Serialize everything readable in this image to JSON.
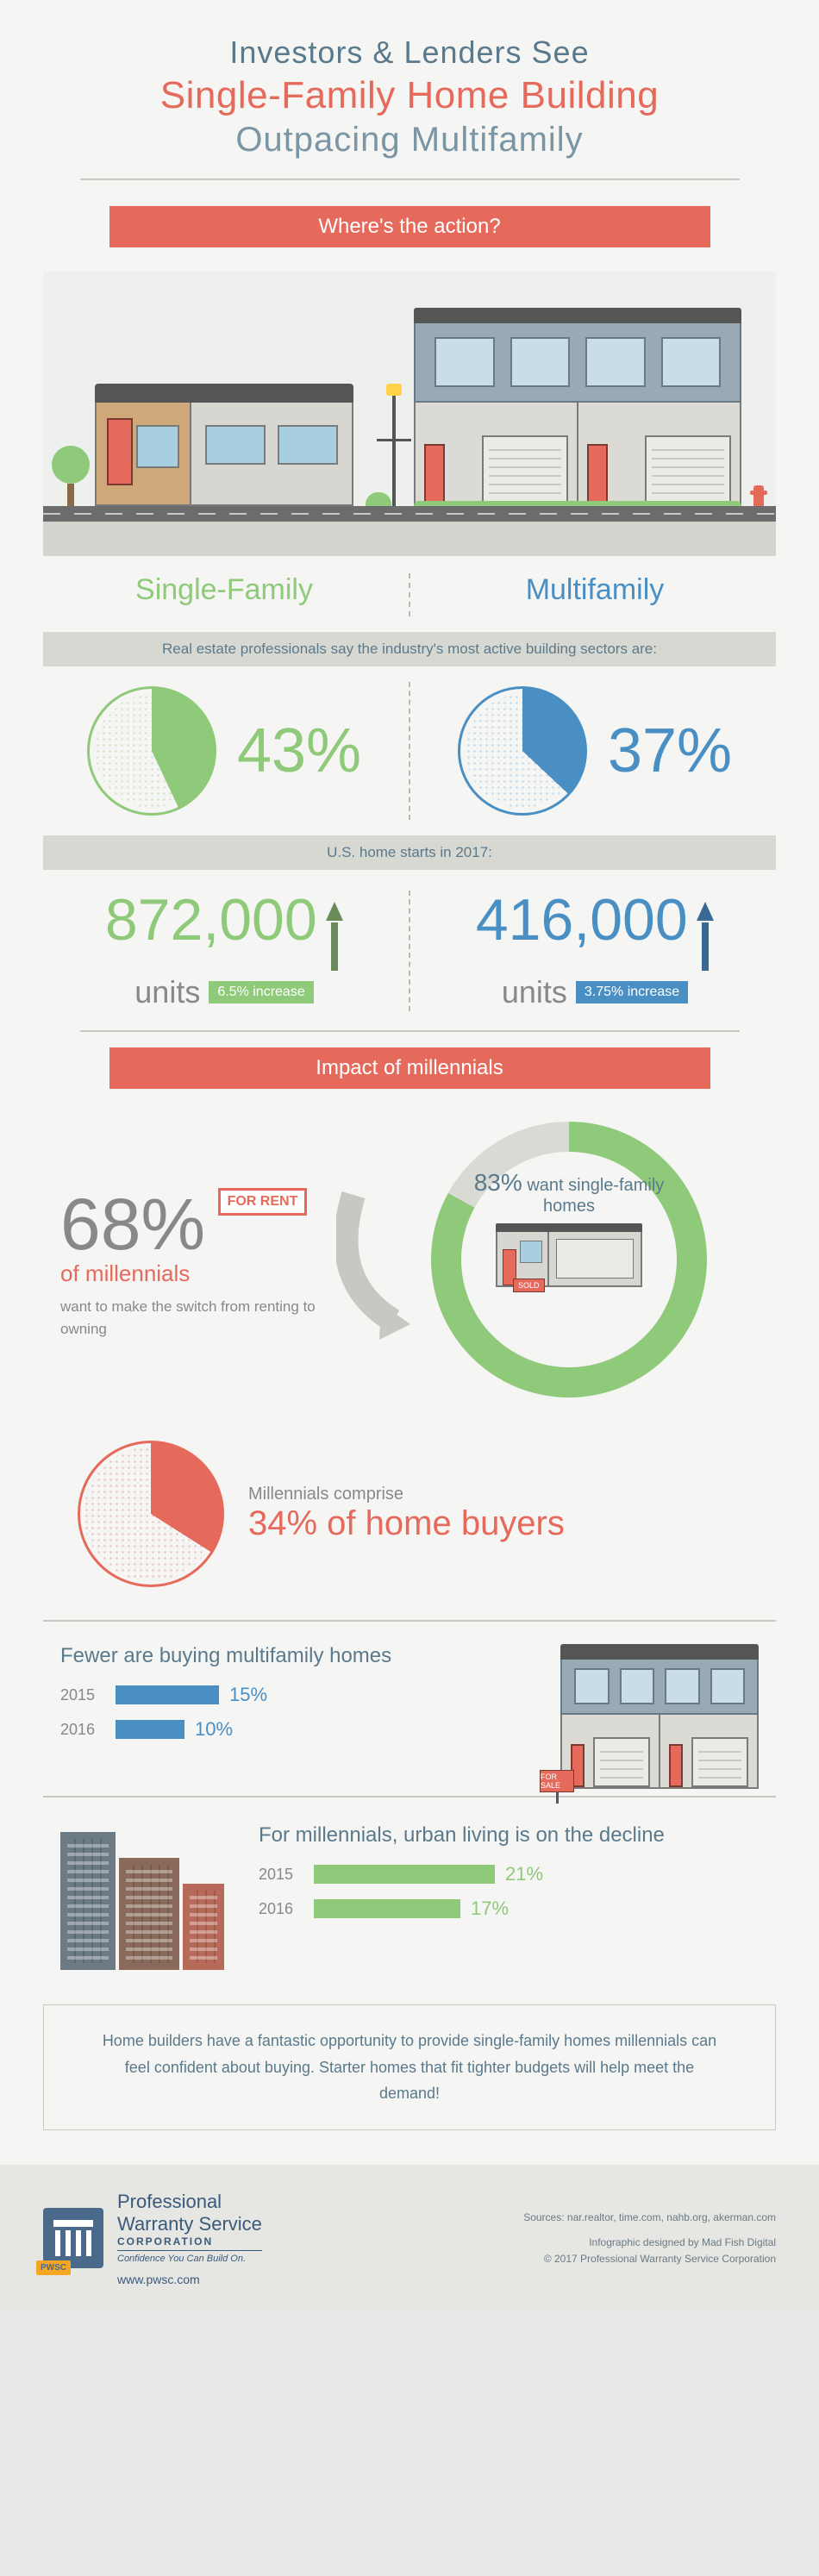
{
  "title": {
    "line1": "Investors & Lenders See",
    "line2": "Single-Family Home Building",
    "line3": "Outpacing Multifamily"
  },
  "section1": {
    "banner": "Where's the action?",
    "single_label": "Single-Family",
    "multi_label": "Multifamily",
    "subhead_active": "Real estate professionals say the industry's most active building sectors are:",
    "single_pct": 43,
    "single_pct_text": "43%",
    "multi_pct": 37,
    "multi_pct_text": "37%",
    "colors": {
      "single": "#8fc97a",
      "multi": "#4a8fc4",
      "dot_sf": "#cde4c0",
      "dot_mf": "#bcd7ec"
    },
    "subhead_starts": "U.S. home starts in 2017:",
    "single_units": "872,000",
    "single_increase": "6.5% increase",
    "multi_units": "416,000",
    "multi_increase": "3.75% increase",
    "units_word": "units"
  },
  "section2": {
    "banner": "Impact of millennials",
    "rent_pct": "68%",
    "of_mill": "of millennials",
    "rent_sub": "want to make the switch from renting to owning",
    "for_rent": "FOR RENT",
    "want_sf_pct": 83,
    "want_sf_text_pct": "83%",
    "want_sf_text_rest": " want single-family homes",
    "sold": "SOLD",
    "buyers_lead": "Millennials comprise",
    "buyers_pct": 34,
    "buyers_big": "34% of home buyers",
    "fewer_title": "Fewer are buying multifamily homes",
    "fewer_bars": [
      {
        "year": "2015",
        "pct": 15,
        "label": "15%"
      },
      {
        "year": "2016",
        "pct": 10,
        "label": "10%"
      }
    ],
    "for_sale": "FOR SALE",
    "urban_title": "For millennials, urban living is on the decline",
    "urban_bars": [
      {
        "year": "2015",
        "pct": 21,
        "label": "21%"
      },
      {
        "year": "2016",
        "pct": 17,
        "label": "17%"
      }
    ],
    "bar_scale_blue": 8,
    "bar_scale_green": 10
  },
  "closing": "Home builders have a fantastic opportunity to provide single-family homes millennials can feel confident about buying. Starter homes that fit tighter budgets will help meet the demand!",
  "footer": {
    "badge": "PWSC",
    "brand1": "Professional",
    "brand2": "Warranty Service",
    "brand3": "CORPORATION",
    "tagline": "Confidence You Can Build On.",
    "url": "www.pwsc.com",
    "sources_label": "Sources:",
    "sources": "nar.realtor, time.com, nahb.org, akerman.com",
    "designed": "Infographic designed by Mad Fish Digital",
    "copyright": "© 2017 Professional Warranty Service Corporation"
  },
  "palette": {
    "coral": "#e66a5c",
    "green": "#8fc97a",
    "blue": "#4a8fc4",
    "slate": "#5a7a8c",
    "gray": "#888888",
    "bg": "#f5f5f3"
  }
}
